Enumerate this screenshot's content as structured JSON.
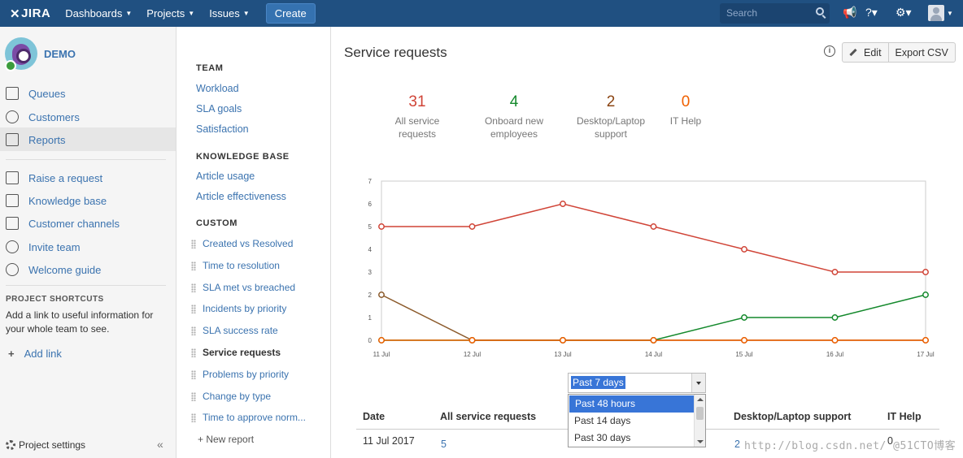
{
  "topnav": {
    "logo": "JIRA",
    "items": [
      "Dashboards",
      "Projects",
      "Issues"
    ],
    "create": "Create",
    "search_placeholder": "Search"
  },
  "sidebar": {
    "project_name": "DEMO",
    "items": [
      {
        "label": "Queues",
        "icon": "queues-icon"
      },
      {
        "label": "Customers",
        "icon": "customers-icon"
      },
      {
        "label": "Reports",
        "icon": "reports-icon",
        "active": true
      },
      {
        "label": "Raise a request",
        "icon": "raise-request-icon"
      },
      {
        "label": "Knowledge base",
        "icon": "knowledge-base-icon"
      },
      {
        "label": "Customer channels",
        "icon": "channels-icon"
      },
      {
        "label": "Invite team",
        "icon": "invite-icon"
      },
      {
        "label": "Welcome guide",
        "icon": "compass-icon"
      }
    ],
    "shortcuts_heading": "PROJECT SHORTCUTS",
    "shortcuts_text": "Add a link to useful information for your whole team to see.",
    "add_link": "Add link",
    "settings": "Project settings"
  },
  "reportnav": {
    "team_heading": "TEAM",
    "team": [
      "Workload",
      "SLA goals",
      "Satisfaction"
    ],
    "kb_heading": "KNOWLEDGE BASE",
    "kb": [
      "Article usage",
      "Article effectiveness"
    ],
    "custom_heading": "CUSTOM",
    "custom": [
      "Created vs Resolved",
      "Time to resolution",
      "SLA met vs breached",
      "Incidents by priority",
      "SLA success rate",
      "Service requests",
      "Problems by priority",
      "Change by type",
      "Time to approve norm..."
    ],
    "new_report": "New report"
  },
  "main": {
    "title": "Service requests",
    "edit": "Edit",
    "export": "Export CSV",
    "stats": [
      {
        "value": "31",
        "label1": "All service",
        "label2": "requests",
        "color": "#d04437"
      },
      {
        "value": "4",
        "label1": "Onboard new",
        "label2": "employees",
        "color": "#14892c"
      },
      {
        "value": "2",
        "label1": "Desktop/Laptop",
        "label2": "support",
        "color": "#8b4513"
      },
      {
        "value": "0",
        "label1": "IT Help",
        "label2": "",
        "color": "#f06000"
      }
    ],
    "period": {
      "selected": "Past 7 days",
      "options": [
        "Past 48 hours",
        "Past 14 days",
        "Past 30 days"
      ],
      "highlighted": "Past 48 hours"
    },
    "table": {
      "headers": [
        "Date",
        "All service requests",
        "Desktop/Laptop support",
        "IT Help"
      ],
      "rows": [
        [
          "11 Jul 2017",
          "5",
          "2",
          "0"
        ]
      ]
    },
    "watermark": "http://blog.csdn.net/      @51CTO博客"
  },
  "chart_data": {
    "type": "line",
    "categories": [
      "11 Jul",
      "12 Jul",
      "13 Jul",
      "14 Jul",
      "15 Jul",
      "16 Jul",
      "17 Jul"
    ],
    "ylim": [
      0,
      7
    ],
    "yticks": [
      "0",
      "1",
      "2",
      "3",
      "4",
      "5",
      "6",
      "7"
    ],
    "series": [
      {
        "values": [
          5,
          5,
          6,
          5,
          4,
          3,
          3
        ],
        "color": "#d04437"
      },
      {
        "values": [
          0,
          0,
          0,
          0,
          1,
          1,
          2
        ],
        "color": "#14892c"
      },
      {
        "values": [
          2,
          0,
          0,
          0,
          0,
          0,
          0
        ],
        "color": "#8b5a2b"
      },
      {
        "values": [
          0,
          0,
          0,
          0,
          0,
          0,
          0
        ],
        "color": "#f06000"
      }
    ]
  }
}
